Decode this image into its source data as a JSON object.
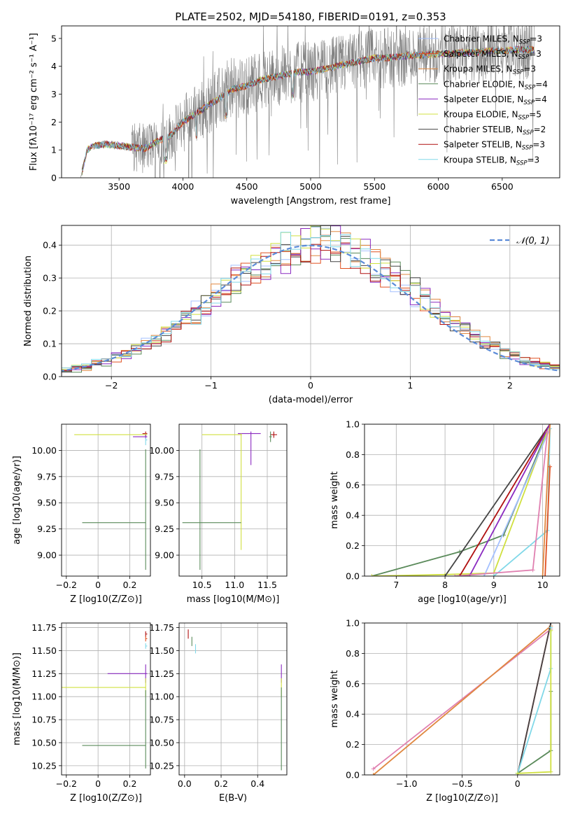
{
  "figure": {
    "title": "PLATE=2502, MJD=54180, FIBERID=0191, z=0.353"
  },
  "colors": {
    "chabrier_miles": "#a4c0ff",
    "salpeter_miles": "#e05020",
    "kroupa_miles": "#e08840",
    "chabrier_elodie": "#5a8a5a",
    "salpeter_elodie": "#8a2ac0",
    "kroupa_elodie": "#d0e040",
    "chabrier_stelib": "#444444",
    "salpeter_stelib": "#b01010",
    "kroupa_stelib": "#80d8e8",
    "pink": "#e080b0",
    "normal": "#5b8bd8"
  },
  "chart_data": [
    {
      "id": "spectrum",
      "type": "line",
      "xlabel": "wavelength [Angstrom, rest frame]",
      "ylabel": "Flux [fλ10⁻¹⁷ erg cm⁻² s⁻¹ A⁻¹]",
      "xlim": [
        3050,
        6950
      ],
      "ylim": [
        0,
        5.45
      ],
      "xticks": [
        3500,
        4000,
        4500,
        5000,
        5500,
        6000,
        6500
      ],
      "yticks": [
        0,
        1,
        2,
        3,
        4,
        5
      ],
      "legend": "upper-right",
      "series": [
        {
          "name": "Chabrier MILES, N_SSP=3",
          "color": "#a4c0ff"
        },
        {
          "name": "Salpeter MILES, N_SSP=3",
          "color": "#e05020"
        },
        {
          "name": "Kroupa MILES, N_SSP=3",
          "color": "#e08840"
        },
        {
          "name": "Chabrier ELODIE, N_SSP=4",
          "color": "#5a8a5a"
        },
        {
          "name": "Salpeter ELODIE, N_SSP=4",
          "color": "#8a2ac0"
        },
        {
          "name": "Kroupa ELODIE, N_SSP=5",
          "color": "#d0e040"
        },
        {
          "name": "Chabrier STELIB, N_SSP=2",
          "color": "#444444"
        },
        {
          "name": "Salpeter STELIB, N_SSP=3",
          "color": "#b01010"
        },
        {
          "name": "Kroupa STELIB, N_SSP=3",
          "color": "#80d8e8"
        }
      ],
      "data_trend": {
        "x": [
          3200,
          3250,
          3300,
          3400,
          3500,
          3600,
          3700,
          3800,
          3900,
          4000,
          4100,
          4200,
          4300,
          4400,
          4500,
          4600,
          4700,
          4800,
          4900,
          5000,
          5100,
          5200,
          5300,
          5400,
          5500,
          5600,
          5700,
          5800,
          5900,
          6000,
          6100,
          6200,
          6300,
          6400,
          6500,
          6600,
          6700,
          6750
        ],
        "y": [
          0,
          1.0,
          1.15,
          1.2,
          1.15,
          1.1,
          1.05,
          1.3,
          1.5,
          2.0,
          2.3,
          2.6,
          2.9,
          3.2,
          3.3,
          3.5,
          3.6,
          3.7,
          3.8,
          3.8,
          3.9,
          4.0,
          4.1,
          4.2,
          4.3,
          4.3,
          4.35,
          4.4,
          4.4,
          4.45,
          4.45,
          4.5,
          4.5,
          4.55,
          4.55,
          4.6,
          4.6,
          4.6
        ]
      }
    },
    {
      "id": "residuals",
      "type": "histogram",
      "xlabel": "(data-model)/error",
      "ylabel": "Normed distribution",
      "xlim": [
        -2.5,
        2.5
      ],
      "ylim": [
        0,
        0.46
      ],
      "xticks": [
        -2,
        -1,
        0,
        1,
        2
      ],
      "yticks": [
        0.0,
        0.1,
        0.2,
        0.3,
        0.4
      ],
      "legend": "upper-right",
      "normal_label": "𝒩(0, 1)",
      "grid": true
    },
    {
      "id": "age_vs_Z",
      "type": "scatter",
      "xlabel": "Z [log10(Z/Z⊙)]",
      "ylabel": "age  [log10(age/yr)]",
      "xlim": [
        -0.23,
        0.33
      ],
      "ylim": [
        8.8,
        10.25
      ],
      "xticks": [
        -0.2,
        0.0,
        0.2
      ],
      "yticks": [
        9.0,
        9.25,
        9.5,
        9.75,
        10.0
      ],
      "grid": true,
      "points": [
        {
          "x": 0.3,
          "y": 10.16,
          "xerr": [
            0.02,
            0.01
          ],
          "yerr": [
            0.02,
            0.02
          ],
          "color": "#b01010"
        },
        {
          "x": 0.3,
          "y": 10.15,
          "xerr": [
            0.45,
            0.01
          ],
          "yerr": [
            0.01,
            0.01
          ],
          "color": "#d0e040"
        },
        {
          "x": 0.3,
          "y": 10.13,
          "xerr": [
            0.08,
            0.01
          ],
          "yerr": [
            0.02,
            0.02
          ],
          "color": "#8a2ac0"
        },
        {
          "x": 0.3,
          "y": 10.1,
          "xerr": [
            0.0,
            0.01
          ],
          "yerr": [
            0.05,
            0.02
          ],
          "color": "#80d8e8"
        },
        {
          "x": 0.3,
          "y": 9.31,
          "xerr": [
            0.4,
            0.0
          ],
          "yerr": [
            0.45,
            0.7
          ],
          "color": "#5a8a5a"
        }
      ]
    },
    {
      "id": "age_vs_mass",
      "type": "scatter",
      "xlabel": "mass [log10(M/M⊙)]",
      "ylabel": "",
      "xlim": [
        10.15,
        11.8
      ],
      "ylim": [
        8.8,
        10.25
      ],
      "xticks": [
        10.5,
        11.0,
        11.5
      ],
      "yticks": [
        9.0,
        9.25,
        9.5,
        9.75,
        10.0
      ],
      "grid": true,
      "points": [
        {
          "x": 11.6,
          "y": 10.15,
          "xerr": [
            0.05,
            0.05
          ],
          "yerr": [
            0.03,
            0.03
          ],
          "color": "#b01010"
        },
        {
          "x": 11.55,
          "y": 10.13,
          "xerr": [
            0.02,
            0.02
          ],
          "yerr": [
            0.05,
            0.05
          ],
          "color": "#5a8a5a"
        },
        {
          "x": 11.25,
          "y": 10.16,
          "xerr": [
            0.2,
            0.15
          ],
          "yerr": [
            0.3,
            0.02
          ],
          "color": "#8a2ac0"
        },
        {
          "x": 11.1,
          "y": 10.15,
          "xerr": [
            0.6,
            0.01
          ],
          "yerr": [
            1.1,
            0.01
          ],
          "color": "#d0e040"
        },
        {
          "x": 10.47,
          "y": 9.31,
          "xerr": [
            0.27,
            0.63
          ],
          "yerr": [
            0.45,
            0.7
          ],
          "color": "#5a8a5a"
        }
      ]
    },
    {
      "id": "weight_vs_age",
      "type": "line",
      "xlabel": "age  [log10(age/yr)]",
      "ylabel": "mass weight",
      "xlim": [
        6.35,
        10.35
      ],
      "ylim": [
        0,
        1.0
      ],
      "xticks": [
        7,
        8,
        9,
        10
      ],
      "yticks": [
        0.0,
        0.2,
        0.4,
        0.6,
        0.8,
        1.0
      ],
      "grid": true,
      "series": [
        {
          "color": "#5a8a5a",
          "x": [
            6.5,
            8.3,
            9.2,
            10.15
          ],
          "y": [
            0.0,
            0.16,
            0.27,
            1.0
          ]
        },
        {
          "color": "#d0e040",
          "x": [
            6.5,
            8.0,
            9.0,
            10.15
          ],
          "y": [
            0.0,
            0.01,
            0.02,
            1.0
          ]
        },
        {
          "color": "#444444",
          "x": [
            8.0,
            10.15
          ],
          "y": [
            0.0,
            1.0
          ]
        },
        {
          "color": "#b01010",
          "x": [
            8.3,
            10.15
          ],
          "y": [
            0.0,
            1.0
          ]
        },
        {
          "color": "#8a2ac0",
          "x": [
            8.5,
            10.15
          ],
          "y": [
            0.0,
            1.0
          ]
        },
        {
          "color": "#a4c0ff",
          "x": [
            8.8,
            10.15
          ],
          "y": [
            0.0,
            0.97
          ]
        },
        {
          "color": "#80d8e8",
          "x": [
            9.0,
            10.1,
            10.15
          ],
          "y": [
            0.0,
            0.3,
            0.97
          ]
        },
        {
          "color": "#e08840",
          "x": [
            10.0,
            10.15
          ],
          "y": [
            0.0,
            1.0
          ]
        },
        {
          "color": "#e080b0",
          "x": [
            8.2,
            9.8,
            10.1
          ],
          "y": [
            0.0,
            0.04,
            0.95
          ]
        },
        {
          "color": "#e05020",
          "x": [
            10.05,
            10.15
          ],
          "y": [
            0.0,
            0.72
          ]
        }
      ]
    },
    {
      "id": "mass_vs_Z",
      "type": "scatter",
      "xlabel": "Z [log10(Z/Z⊙)]",
      "ylabel": "mass [log10(M/M⊙)]",
      "xlim": [
        -0.23,
        0.33
      ],
      "ylim": [
        10.15,
        11.8
      ],
      "xticks": [
        -0.2,
        0.0,
        0.2
      ],
      "yticks": [
        10.25,
        10.5,
        10.75,
        11.0,
        11.25,
        11.5,
        11.75
      ],
      "grid": true,
      "points": [
        {
          "x": 0.3,
          "y": 11.68,
          "xerr": [
            0.0,
            0.01
          ],
          "yerr": [
            0.03,
            0.03
          ],
          "color": "#b01010"
        },
        {
          "x": 0.3,
          "y": 11.63,
          "xerr": [
            0.0,
            0.01
          ],
          "yerr": [
            0.03,
            0.03
          ],
          "color": "#e05020"
        },
        {
          "x": 0.3,
          "y": 11.55,
          "xerr": [
            0.0,
            0.01
          ],
          "yerr": [
            0.03,
            0.03
          ],
          "color": "#80d8e8"
        },
        {
          "x": 0.3,
          "y": 11.25,
          "xerr": [
            0.24,
            0.01
          ],
          "yerr": [
            0.1,
            0.1
          ],
          "color": "#8a2ac0"
        },
        {
          "x": 0.3,
          "y": 11.1,
          "xerr": [
            0.53,
            0.0
          ],
          "yerr": [
            0.1,
            0.1
          ],
          "color": "#d0e040"
        },
        {
          "x": 0.3,
          "y": 10.47,
          "xerr": [
            0.4,
            0.0
          ],
          "yerr": [
            0.25,
            0.6
          ],
          "color": "#5a8a5a"
        }
      ]
    },
    {
      "id": "mass_vs_EBV",
      "type": "scatter",
      "xlabel": "E(B-V)",
      "ylabel": "",
      "xlim": [
        -0.03,
        0.56
      ],
      "ylim": [
        10.15,
        11.8
      ],
      "xticks": [
        0.0,
        0.2,
        0.4
      ],
      "yticks": [
        10.25,
        10.5,
        10.75,
        11.0,
        11.25,
        11.5,
        11.75
      ],
      "grid": true,
      "points": [
        {
          "x": 0.02,
          "y": 11.68,
          "xerr": [
            0.0,
            0.0
          ],
          "yerr": [
            0.05,
            0.05
          ],
          "color": "#b01010"
        },
        {
          "x": 0.04,
          "y": 11.6,
          "xerr": [
            0.0,
            0.0
          ],
          "yerr": [
            0.05,
            0.05
          ],
          "color": "#5a8a5a"
        },
        {
          "x": 0.06,
          "y": 11.52,
          "xerr": [
            0.0,
            0.0
          ],
          "yerr": [
            0.05,
            0.05
          ],
          "color": "#80d8e8"
        },
        {
          "x": 0.53,
          "y": 11.25,
          "xerr": [
            0.0,
            0.0
          ],
          "yerr": [
            0.1,
            0.1
          ],
          "color": "#8a2ac0"
        },
        {
          "x": 0.53,
          "y": 11.1,
          "xerr": [
            0.0,
            0.0
          ],
          "yerr": [
            0.1,
            0.1
          ],
          "color": "#d0e040"
        },
        {
          "x": 0.53,
          "y": 10.6,
          "xerr": [
            0.0,
            0.0
          ],
          "yerr": [
            0.4,
            0.5
          ],
          "color": "#5a8a5a"
        }
      ]
    },
    {
      "id": "weight_vs_Z",
      "type": "line",
      "xlabel": "Z [log10(Z/Z⊙)]",
      "ylabel": "mass weight",
      "xlim": [
        -1.38,
        0.38
      ],
      "ylim": [
        0,
        1.0
      ],
      "xticks": [
        -1.0,
        -0.5,
        0.0
      ],
      "yticks": [
        0.0,
        0.2,
        0.4,
        0.6,
        0.8,
        1.0
      ],
      "grid": true,
      "series": [
        {
          "color": "#e080b0",
          "x": [
            -1.3,
            0.3
          ],
          "y": [
            0.04,
            0.96
          ]
        },
        {
          "color": "#e08840",
          "x": [
            -1.3,
            0.3
          ],
          "y": [
            0.0,
            0.98
          ]
        },
        {
          "color": "#b01010",
          "x": [
            0.0,
            0.3
          ],
          "y": [
            0.0,
            1.0
          ]
        },
        {
          "color": "#444444",
          "x": [
            0.0,
            0.3
          ],
          "y": [
            0.0,
            1.0
          ]
        },
        {
          "color": "#5a8a5a",
          "x": [
            0.0,
            0.3,
            0.3
          ],
          "y": [
            0.01,
            0.16,
            0.55
          ]
        },
        {
          "color": "#80d8e8",
          "x": [
            0.0,
            0.3,
            0.3
          ],
          "y": [
            0.01,
            0.7,
            0.97
          ]
        },
        {
          "color": "#d0e040",
          "x": [
            0.0,
            0.3,
            0.3
          ],
          "y": [
            0.01,
            0.02,
            0.95
          ]
        }
      ]
    }
  ]
}
